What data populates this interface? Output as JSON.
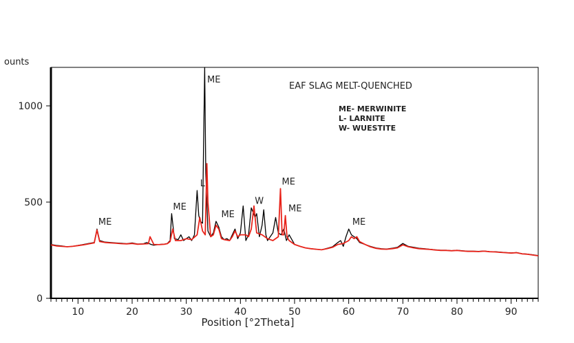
{
  "chart_data": {
    "type": "line",
    "title": "EAF SLAG MELT-QUENCHED",
    "xlabel": "Position [°2Theta]",
    "ylabel": "ounts",
    "xlim": [
      5,
      95
    ],
    "ylim": [
      0,
      1200
    ],
    "xticks": [
      10,
      20,
      30,
      40,
      50,
      60,
      70,
      80,
      90
    ],
    "yticks": [
      0,
      500,
      1000
    ],
    "legend": [
      "ME- MERWINITE",
      "L- LARNITE",
      "W- WUESTITE"
    ],
    "series": [
      {
        "color": "#000000",
        "x": [
          5,
          6,
          7,
          8,
          9,
          10,
          11,
          12,
          13,
          13.5,
          14,
          15,
          16,
          17,
          18,
          19,
          20,
          21,
          22,
          22.7,
          23.5,
          24,
          25,
          26,
          26.5,
          27,
          27.3,
          27.8,
          28.5,
          29,
          29.5,
          30,
          30.5,
          31,
          31.5,
          32,
          32.3,
          32.6,
          33,
          33.2,
          33.4,
          33.6,
          34,
          34.5,
          35,
          35.5,
          36,
          36.5,
          37,
          37.5,
          38,
          38.5,
          39,
          39.5,
          40,
          40.5,
          41,
          41.5,
          42,
          42.3,
          42.7,
          43,
          43.5,
          44,
          44.3,
          44.7,
          45,
          45.5,
          46,
          46.5,
          47,
          47.5,
          48,
          48.5,
          49,
          50,
          51,
          52,
          53,
          54,
          55,
          56,
          57,
          58,
          58.5,
          59,
          59.5,
          60,
          60.5,
          61,
          61.5,
          62,
          63,
          64,
          65,
          66,
          67,
          68,
          69,
          70,
          71,
          72,
          73,
          74,
          75,
          76,
          77,
          78,
          79,
          80,
          81,
          82,
          83,
          84,
          85,
          86,
          87,
          88,
          89,
          90,
          91,
          92,
          93,
          94,
          95
        ],
        "y": [
          280,
          275,
          272,
          268,
          270,
          275,
          280,
          285,
          290,
          360,
          300,
          292,
          290,
          288,
          286,
          284,
          288,
          282,
          283,
          290,
          280,
          276,
          280,
          282,
          285,
          300,
          440,
          310,
          305,
          330,
          300,
          310,
          320,
          300,
          330,
          560,
          430,
          400,
          390,
          800,
          1200,
          650,
          350,
          320,
          340,
          400,
          370,
          320,
          305,
          310,
          300,
          330,
          360,
          310,
          340,
          480,
          300,
          330,
          470,
          450,
          420,
          440,
          320,
          380,
          460,
          330,
          300,
          320,
          340,
          420,
          340,
          330,
          360,
          300,
          330,
          280,
          270,
          262,
          258,
          255,
          252,
          260,
          268,
          290,
          300,
          270,
          320,
          360,
          330,
          320,
          310,
          290,
          280,
          270,
          262,
          258,
          256,
          260,
          265,
          285,
          270,
          265,
          260,
          258,
          255,
          252,
          250,
          250,
          248,
          250,
          247,
          245,
          245,
          244,
          246,
          243,
          242,
          240,
          238,
          236,
          238,
          232,
          230,
          226,
          222
        ]
      },
      {
        "color": "#e8241b",
        "x": [
          5,
          6,
          7,
          8,
          9,
          10,
          11,
          12,
          13,
          13.5,
          14,
          15,
          16,
          17,
          18,
          19,
          20,
          21,
          22,
          23,
          23.3,
          24,
          25,
          26,
          26.5,
          27,
          27.5,
          28,
          29,
          30,
          31,
          32,
          32.5,
          33,
          33.5,
          33.8,
          34,
          34.5,
          35,
          35.5,
          36,
          36.5,
          37,
          38,
          38.5,
          39,
          39.5,
          40,
          41,
          41.5,
          42,
          42.5,
          43,
          44,
          45,
          46,
          47,
          47.4,
          47.7,
          48,
          48.3,
          48.6,
          49,
          50,
          51,
          52,
          53,
          54,
          55,
          56,
          57,
          58,
          59,
          60,
          60.5,
          61,
          61.5,
          62,
          63,
          64,
          65,
          66,
          67,
          68,
          69,
          70,
          71,
          72,
          73,
          74,
          75,
          76,
          77,
          78,
          79,
          80,
          81,
          82,
          83,
          84,
          85,
          86,
          87,
          88,
          89,
          90,
          91,
          92,
          93,
          94,
          95
        ],
        "y": [
          278,
          272,
          270,
          268,
          270,
          274,
          278,
          283,
          288,
          355,
          295,
          290,
          288,
          286,
          284,
          283,
          285,
          281,
          282,
          284,
          320,
          280,
          279,
          281,
          284,
          295,
          360,
          300,
          300,
          310,
          305,
          330,
          420,
          350,
          330,
          700,
          500,
          320,
          330,
          380,
          360,
          310,
          305,
          300,
          320,
          350,
          320,
          330,
          330,
          320,
          360,
          480,
          340,
          330,
          310,
          300,
          320,
          570,
          330,
          330,
          430,
          320,
          300,
          280,
          270,
          262,
          258,
          255,
          252,
          258,
          265,
          280,
          285,
          300,
          320,
          310,
          320,
          295,
          280,
          268,
          260,
          256,
          255,
          258,
          262,
          278,
          268,
          262,
          258,
          256,
          254,
          251,
          249,
          249,
          247,
          249,
          246,
          244,
          244,
          243,
          245,
          242,
          241,
          239,
          237,
          235,
          237,
          231,
          229,
          225,
          221
        ]
      }
    ],
    "annotations": [
      {
        "label": "ME",
        "x": 13.5,
        "y": 360
      },
      {
        "label": "ME",
        "x": 27.3,
        "y": 440
      },
      {
        "label": "L",
        "x": 32.3,
        "y": 560
      },
      {
        "label": "ME",
        "x": 33.6,
        "y": 1100
      },
      {
        "label": "ME",
        "x": 36.2,
        "y": 400
      },
      {
        "label": "W",
        "x": 42.4,
        "y": 470
      },
      {
        "label": "ME",
        "x": 47.4,
        "y": 570
      },
      {
        "label": "ME",
        "x": 48.6,
        "y": 430
      },
      {
        "label": "ME",
        "x": 60.4,
        "y": 360
      }
    ],
    "grid": false
  }
}
